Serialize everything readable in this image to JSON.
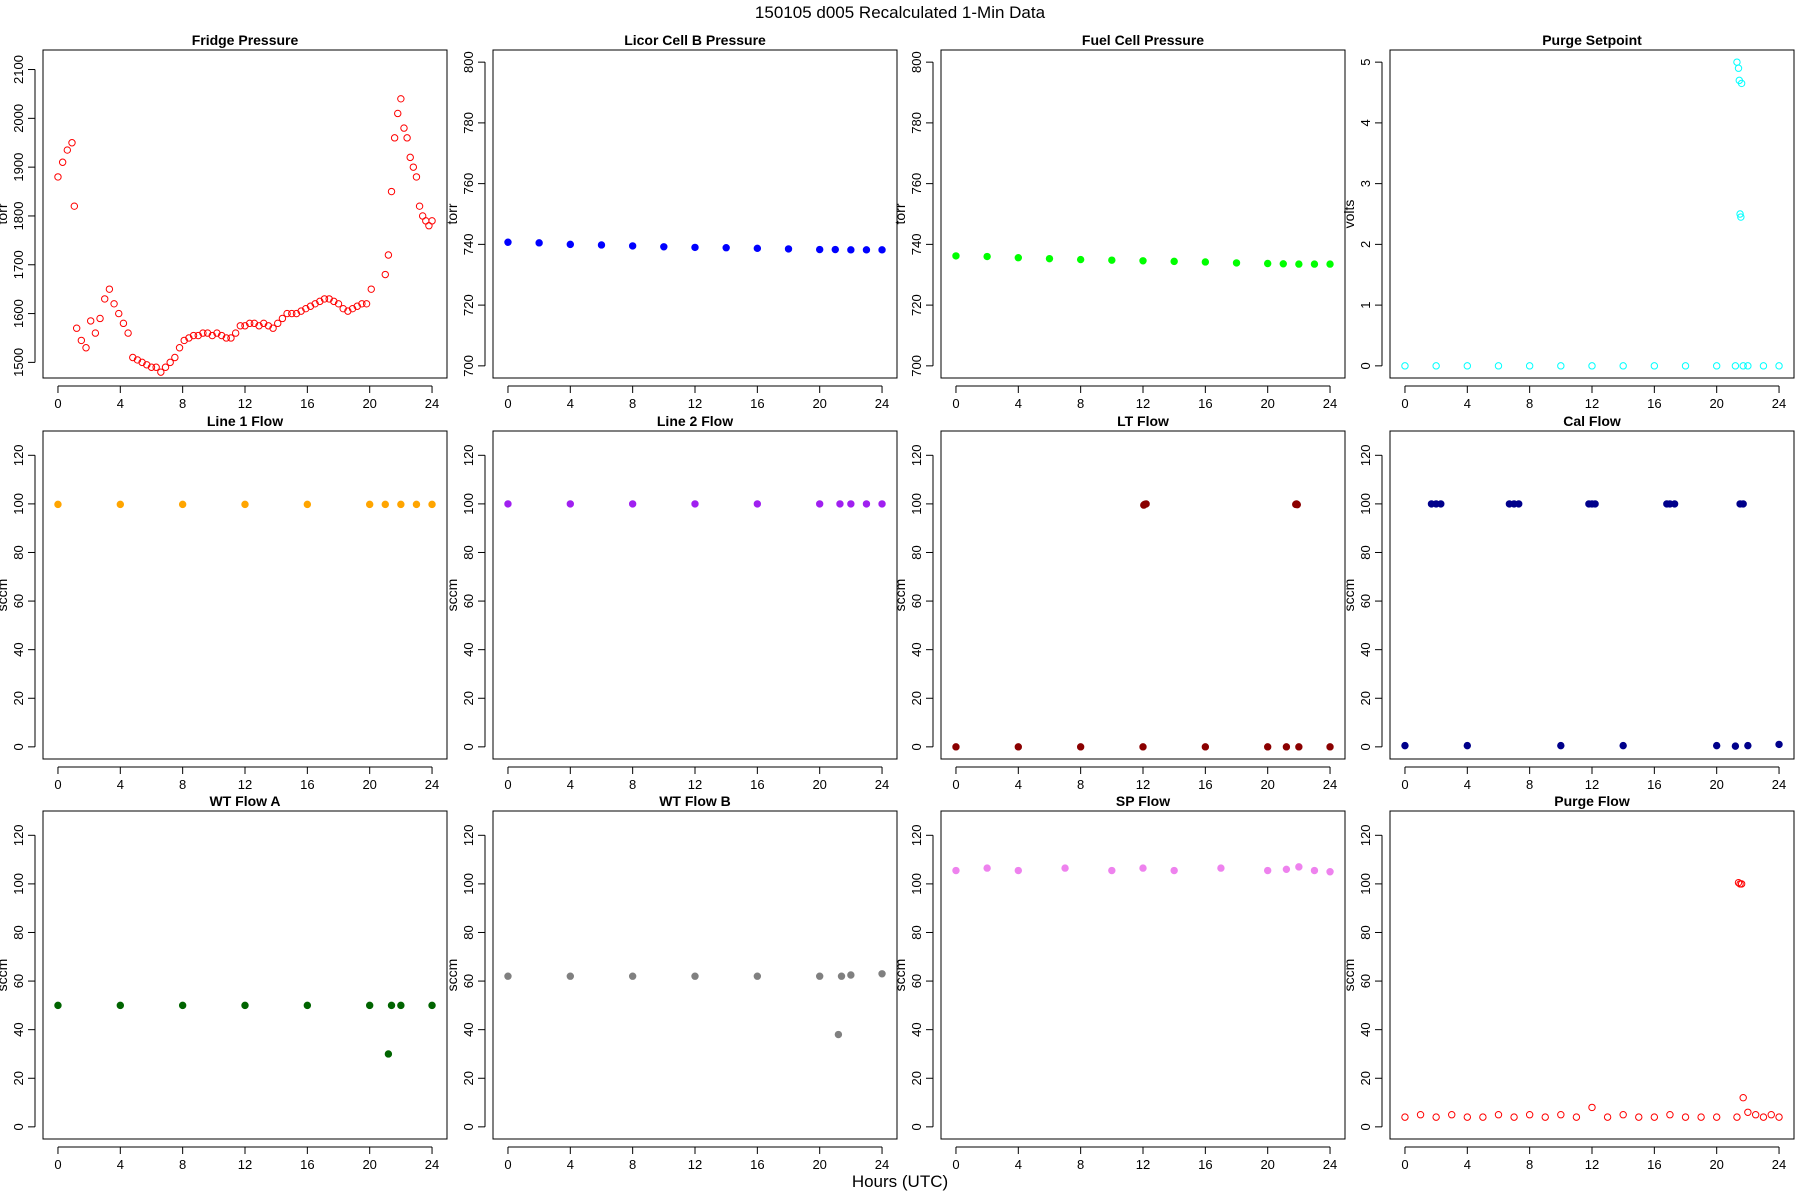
{
  "title": "150105   d005   Recalculated 1-Min Data",
  "xlabel": "Hours (UTC)",
  "chart_data": [
    {
      "type": "scatter",
      "title": "Fridge Pressure",
      "ylabel": "torr",
      "color": "#ff0000",
      "filled": false,
      "xlim": [
        -0.96,
        24.96
      ],
      "ylim": [
        1468,
        2140
      ],
      "xticks": [
        0,
        4,
        8,
        12,
        16,
        20,
        24
      ],
      "yticks": [
        1500,
        1600,
        1700,
        1800,
        1900,
        2000,
        2100
      ],
      "series": [
        {
          "x": [
            0,
            0.3,
            0.6,
            0.9,
            1.05,
            1.2,
            1.5,
            1.8,
            2.1,
            2.4,
            2.7,
            3,
            3.3,
            3.6,
            3.9,
            4.2,
            4.5,
            4.8,
            5.1,
            5.4,
            5.7,
            6,
            6.3,
            6.6,
            6.9,
            7.2,
            7.5,
            7.8,
            8.1,
            8.4,
            8.7,
            9,
            9.3,
            9.6,
            9.9,
            10.2,
            10.5,
            10.8,
            11.1,
            11.4,
            11.7,
            12,
            12.3,
            12.6,
            12.9,
            13.2,
            13.5,
            13.8,
            14.1,
            14.4,
            14.7,
            15,
            15.3,
            15.6,
            15.9,
            16.2,
            16.5,
            16.8,
            17.1,
            17.4,
            17.7,
            18,
            18.3,
            18.6,
            18.9,
            19.2,
            19.5,
            19.8,
            20.1,
            21,
            21.2,
            21.4,
            21.6,
            21.8,
            22,
            22.2,
            22.4,
            22.6,
            22.8,
            23,
            23.2,
            23.4,
            23.6,
            23.8,
            24
          ],
          "y": [
            1880,
            1910,
            1935,
            1950,
            1820,
            1570,
            1545,
            1530,
            1585,
            1560,
            1590,
            1630,
            1650,
            1620,
            1600,
            1580,
            1560,
            1510,
            1505,
            1500,
            1495,
            1490,
            1490,
            1480,
            1490,
            1500,
            1510,
            1530,
            1545,
            1550,
            1555,
            1555,
            1560,
            1560,
            1555,
            1560,
            1555,
            1550,
            1550,
            1560,
            1575,
            1575,
            1580,
            1580,
            1575,
            1580,
            1575,
            1570,
            1580,
            1590,
            1600,
            1600,
            1600,
            1605,
            1610,
            1615,
            1620,
            1625,
            1630,
            1630,
            1625,
            1620,
            1610,
            1605,
            1610,
            1615,
            1620,
            1620,
            1650,
            1680,
            1720,
            1850,
            1960,
            2010,
            2040,
            1980,
            1960,
            1920,
            1900,
            1880,
            1820,
            1800,
            1790,
            1780,
            1790
          ]
        }
      ]
    },
    {
      "type": "scatter",
      "title": "Licor Cell B Pressure",
      "ylabel": "torr",
      "color": "#0000ff",
      "filled": true,
      "xlim": [
        -0.96,
        24.96
      ],
      "ylim": [
        696,
        804
      ],
      "xticks": [
        0,
        4,
        8,
        12,
        16,
        20,
        24
      ],
      "yticks": [
        700,
        720,
        740,
        760,
        780,
        800
      ],
      "series": [
        {
          "x": [
            0,
            2,
            4,
            6,
            8,
            10,
            12,
            14,
            16,
            18,
            20,
            21,
            22,
            23,
            24
          ],
          "y": [
            740.7,
            740.5,
            740.0,
            739.8,
            739.5,
            739.2,
            739.0,
            738.9,
            738.7,
            738.5,
            738.3,
            738.3,
            738.2,
            738.2,
            738.2
          ]
        }
      ]
    },
    {
      "type": "scatter",
      "title": "Fuel Cell Pressure",
      "ylabel": "torr",
      "color": "#00ff00",
      "filled": true,
      "xlim": [
        -0.96,
        24.96
      ],
      "ylim": [
        696,
        804
      ],
      "xticks": [
        0,
        4,
        8,
        12,
        16,
        20,
        24
      ],
      "yticks": [
        700,
        720,
        740,
        760,
        780,
        800
      ],
      "series": [
        {
          "x": [
            0,
            2,
            4,
            6,
            8,
            10,
            12,
            14,
            16,
            18,
            20,
            21,
            22,
            23,
            24
          ],
          "y": [
            736.2,
            736.0,
            735.6,
            735.3,
            735.0,
            734.8,
            734.6,
            734.4,
            734.2,
            733.9,
            733.7,
            733.6,
            733.5,
            733.5,
            733.5
          ]
        }
      ]
    },
    {
      "type": "scatter",
      "title": "Purge Setpoint",
      "ylabel": "volts",
      "color": "#00ffff",
      "filled": false,
      "xlim": [
        -0.96,
        24.96
      ],
      "ylim": [
        -0.2,
        5.2
      ],
      "xticks": [
        0,
        4,
        8,
        12,
        16,
        20,
        24
      ],
      "yticks": [
        0,
        1,
        2,
        3,
        4,
        5
      ],
      "series": [
        {
          "x": [
            0,
            2,
            4,
            6,
            8,
            10,
            12,
            14,
            16,
            18,
            20,
            21.2,
            21.3,
            21.4,
            21.45,
            21.5,
            21.55,
            21.6,
            21.7,
            22,
            23,
            24
          ],
          "y": [
            0,
            0,
            0,
            0,
            0,
            0,
            0,
            0,
            0,
            0,
            0,
            0,
            5.0,
            4.9,
            4.7,
            2.5,
            2.45,
            4.65,
            0,
            0,
            0,
            0
          ]
        }
      ]
    },
    {
      "type": "scatter",
      "title": "Line 1 Flow",
      "ylabel": "sccm",
      "color": "#ffa500",
      "filled": true,
      "xlim": [
        -0.96,
        24.96
      ],
      "ylim": [
        -5,
        130
      ],
      "xticks": [
        0,
        4,
        8,
        12,
        16,
        20,
        24
      ],
      "yticks": [
        0,
        20,
        40,
        60,
        80,
        100,
        120
      ],
      "series": [
        {
          "x": [
            0,
            4,
            8,
            12,
            16,
            20,
            21,
            22,
            23,
            24
          ],
          "y": [
            99.8,
            99.8,
            99.8,
            99.8,
            99.8,
            99.8,
            99.8,
            99.8,
            99.8,
            99.8
          ]
        }
      ]
    },
    {
      "type": "scatter",
      "title": "Line 2 Flow",
      "ylabel": "sccm",
      "color": "#a020f0",
      "filled": true,
      "xlim": [
        -0.96,
        24.96
      ],
      "ylim": [
        -5,
        130
      ],
      "xticks": [
        0,
        4,
        8,
        12,
        16,
        20,
        24
      ],
      "yticks": [
        0,
        20,
        40,
        60,
        80,
        100,
        120
      ],
      "series": [
        {
          "x": [
            0,
            4,
            8,
            12,
            16,
            20,
            21.3,
            22,
            23,
            24
          ],
          "y": [
            100,
            100,
            100,
            100,
            100,
            100,
            100,
            100,
            100,
            100
          ]
        }
      ]
    },
    {
      "type": "scatter",
      "title": "LT Flow",
      "ylabel": "sccm",
      "color": "#8b0000",
      "filled": true,
      "xlim": [
        -0.96,
        24.96
      ],
      "ylim": [
        -5,
        130
      ],
      "xticks": [
        0,
        4,
        8,
        12,
        16,
        20,
        24
      ],
      "yticks": [
        0,
        20,
        40,
        60,
        80,
        100,
        120
      ],
      "series": [
        {
          "x": [
            0,
            4,
            8,
            12,
            12.05,
            12.1,
            12.2,
            16,
            20,
            21.2,
            21.8,
            21.85,
            21.9,
            22,
            24
          ],
          "y": [
            0,
            0,
            0,
            0,
            99.5,
            99.8,
            100,
            0,
            0,
            0,
            99.8,
            100,
            99.7,
            0,
            0
          ]
        }
      ]
    },
    {
      "type": "scatter",
      "title": "Cal Flow",
      "ylabel": "sccm",
      "color": "#00008b",
      "filled": true,
      "xlim": [
        -0.96,
        24.96
      ],
      "ylim": [
        -5,
        130
      ],
      "xticks": [
        0,
        4,
        8,
        12,
        16,
        20,
        24
      ],
      "yticks": [
        0,
        20,
        40,
        60,
        80,
        100,
        120
      ],
      "series": [
        {
          "x": [
            0,
            1.7,
            2,
            2.3,
            4,
            6.7,
            7,
            7.3,
            10,
            11.8,
            12,
            12.2,
            14,
            16.8,
            17,
            17.3,
            20,
            21.2,
            21.5,
            21.7,
            22,
            24
          ],
          "y": [
            0.5,
            100,
            100,
            100,
            0.5,
            100,
            100,
            100,
            0.5,
            100,
            100,
            100,
            0.5,
            100,
            100,
            100,
            0.5,
            0.3,
            100,
            100,
            0.5,
            1
          ]
        }
      ]
    },
    {
      "type": "scatter",
      "title": "WT Flow A",
      "ylabel": "sccm",
      "color": "#006400",
      "filled": true,
      "xlim": [
        -0.96,
        24.96
      ],
      "ylim": [
        -5,
        130
      ],
      "xticks": [
        0,
        4,
        8,
        12,
        16,
        20,
        24
      ],
      "yticks": [
        0,
        20,
        40,
        60,
        80,
        100,
        120
      ],
      "series": [
        {
          "x": [
            0,
            4,
            8,
            12,
            16,
            20,
            21.2,
            21.4,
            22,
            24
          ],
          "y": [
            50,
            50,
            50,
            50,
            50,
            50,
            30,
            50,
            50,
            50
          ]
        }
      ]
    },
    {
      "type": "scatter",
      "title": "WT Flow B",
      "ylabel": "sccm",
      "color": "#808080",
      "filled": true,
      "xlim": [
        -0.96,
        24.96
      ],
      "ylim": [
        -5,
        130
      ],
      "xticks": [
        0,
        4,
        8,
        12,
        16,
        20,
        24
      ],
      "yticks": [
        0,
        20,
        40,
        60,
        80,
        100,
        120
      ],
      "series": [
        {
          "x": [
            0,
            4,
            8,
            12,
            16,
            20,
            21.2,
            21.4,
            22,
            24
          ],
          "y": [
            62,
            62,
            62,
            62,
            62,
            62,
            38,
            62,
            62.5,
            63
          ]
        }
      ]
    },
    {
      "type": "scatter",
      "title": "SP Flow",
      "ylabel": "sccm",
      "color": "#ee82ee",
      "filled": true,
      "xlim": [
        -0.96,
        24.96
      ],
      "ylim": [
        -5,
        130
      ],
      "xticks": [
        0,
        4,
        8,
        12,
        16,
        20,
        24
      ],
      "yticks": [
        0,
        20,
        40,
        60,
        80,
        100,
        120
      ],
      "series": [
        {
          "x": [
            0,
            2,
            4,
            7,
            10,
            12,
            14,
            17,
            20,
            21.2,
            22,
            23,
            24
          ],
          "y": [
            105.5,
            106.5,
            105.5,
            106.5,
            105.5,
            106.5,
            105.5,
            106.5,
            105.5,
            106,
            107,
            105.5,
            105
          ]
        }
      ]
    },
    {
      "type": "scatter",
      "title": "Purge Flow",
      "ylabel": "sccm",
      "color": "#ff0000",
      "filled": false,
      "xlim": [
        -0.96,
        24.96
      ],
      "ylim": [
        -5,
        130
      ],
      "xticks": [
        0,
        4,
        8,
        12,
        16,
        20,
        24
      ],
      "yticks": [
        0,
        20,
        40,
        60,
        80,
        100,
        120
      ],
      "series": [
        {
          "x": [
            0,
            1,
            2,
            3,
            4,
            5,
            6,
            7,
            8,
            9,
            10,
            11,
            12,
            13,
            14,
            15,
            16,
            17,
            18,
            19,
            20,
            21.3,
            21.4,
            21.5,
            21.6,
            21.7,
            22,
            22.5,
            23,
            23.5,
            24
          ],
          "y": [
            4,
            5,
            4,
            5,
            4,
            4,
            5,
            4,
            5,
            4,
            5,
            4,
            8,
            4,
            5,
            4,
            4,
            5,
            4,
            4,
            4,
            4,
            100.5,
            100,
            100,
            12,
            6,
            5,
            4,
            5,
            4
          ]
        }
      ]
    }
  ]
}
